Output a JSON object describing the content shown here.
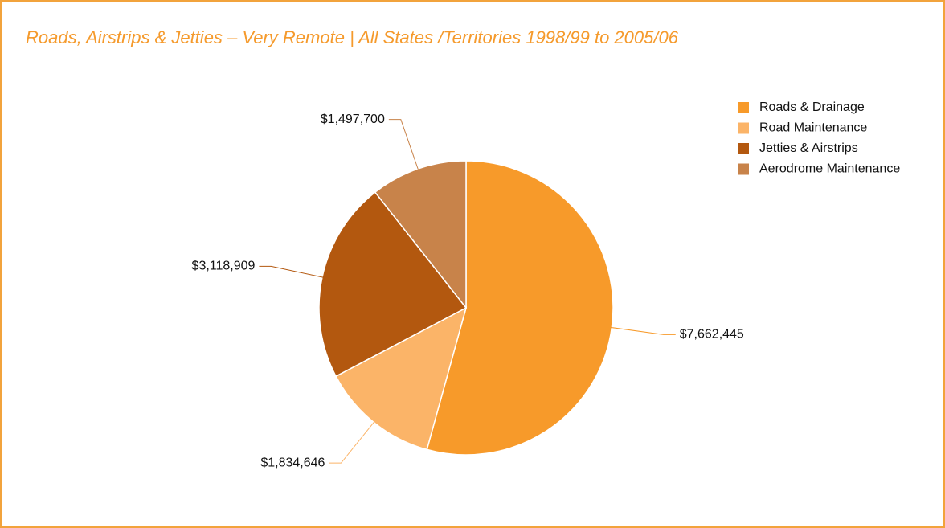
{
  "chart_data": {
    "type": "pie",
    "title": "Roads, Airstrips & Jetties – Very Remote | All States /Territories 1998/99 to 2005/06",
    "categories": [
      "Roads & Drainage",
      "Road Maintenance",
      "Jetties & Airstrips",
      "Aerodrome Maintenance"
    ],
    "values": [
      7662445,
      1834646,
      3118909,
      1497700
    ],
    "value_labels": [
      "$7,662,445",
      "$1,834,646",
      "$3,118,909",
      "$1,497,700"
    ],
    "colors": [
      "#f79a2a",
      "#fbb468",
      "#b3580f",
      "#c8834a"
    ],
    "legend": "upper right"
  }
}
